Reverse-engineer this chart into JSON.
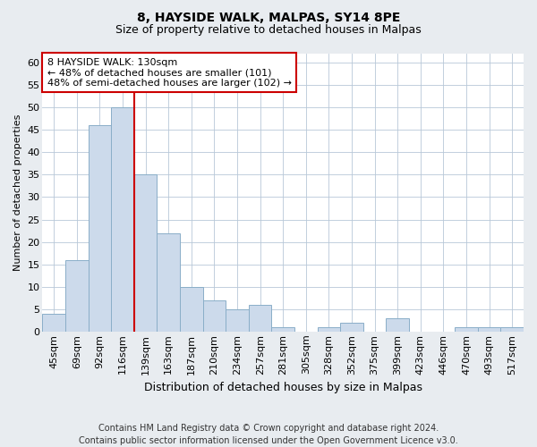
{
  "title1": "8, HAYSIDE WALK, MALPAS, SY14 8PE",
  "title2": "Size of property relative to detached houses in Malpas",
  "xlabel": "Distribution of detached houses by size in Malpas",
  "ylabel": "Number of detached properties",
  "categories": [
    "45sqm",
    "69sqm",
    "92sqm",
    "116sqm",
    "139sqm",
    "163sqm",
    "187sqm",
    "210sqm",
    "234sqm",
    "257sqm",
    "281sqm",
    "305sqm",
    "328sqm",
    "352sqm",
    "375sqm",
    "399sqm",
    "423sqm",
    "446sqm",
    "470sqm",
    "493sqm",
    "517sqm"
  ],
  "values": [
    4,
    16,
    46,
    50,
    35,
    22,
    10,
    7,
    5,
    6,
    1,
    0,
    1,
    2,
    0,
    3,
    0,
    0,
    1,
    1,
    1
  ],
  "bar_color": "#ccdaeb",
  "bar_edge_color": "#8aaec8",
  "vline_color": "#cc0000",
  "vline_index": 3.5,
  "annotation_title": "8 HAYSIDE WALK: 130sqm",
  "annotation_line1": "← 48% of detached houses are smaller (101)",
  "annotation_line2": "48% of semi-detached houses are larger (102) →",
  "annotation_box_color": "#cc0000",
  "ylim": [
    0,
    62
  ],
  "yticks": [
    0,
    5,
    10,
    15,
    20,
    25,
    30,
    35,
    40,
    45,
    50,
    55,
    60
  ],
  "footer1": "Contains HM Land Registry data © Crown copyright and database right 2024.",
  "footer2": "Contains public sector information licensed under the Open Government Licence v3.0.",
  "bg_color": "#e8ecf0",
  "plot_bg_color": "#ffffff",
  "title1_fontsize": 10,
  "title2_fontsize": 9,
  "xlabel_fontsize": 9,
  "ylabel_fontsize": 8,
  "tick_fontsize": 8,
  "annotation_fontsize": 8,
  "footer_fontsize": 7
}
